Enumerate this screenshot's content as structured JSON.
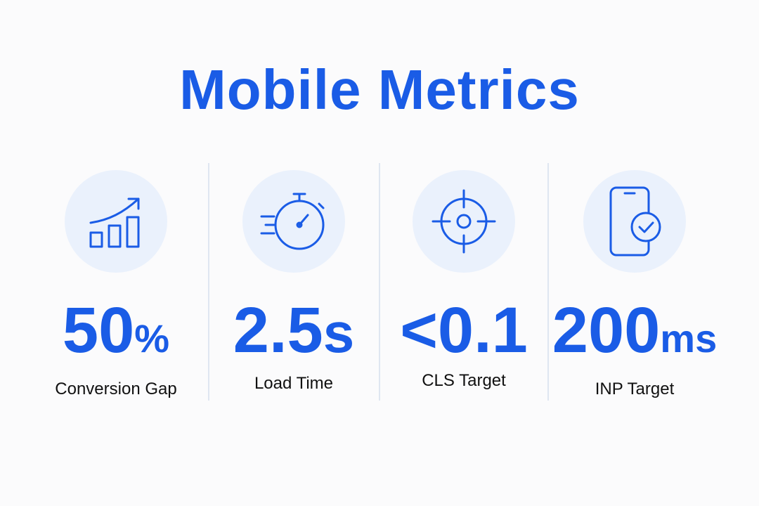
{
  "header": {
    "title": "Mobile Metrics"
  },
  "metrics": [
    {
      "value": "50",
      "unit": "%",
      "label": "Conversion Gap"
    },
    {
      "value": "2.5",
      "unit": "s",
      "label": "Load Time"
    },
    {
      "value": "<0.1",
      "label": "CLS Target"
    },
    {
      "value": "200",
      "unit": "ms",
      "label": "INP Target"
    }
  ]
}
